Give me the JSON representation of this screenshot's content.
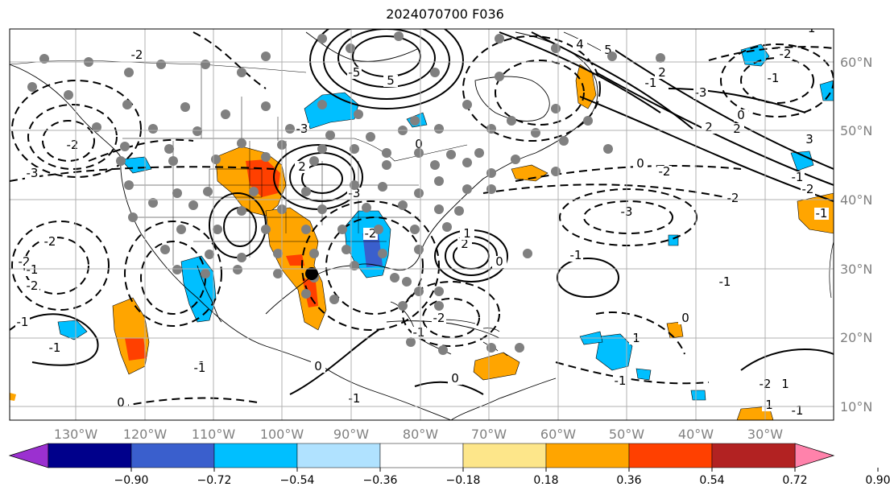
{
  "title": "2024070700 F036",
  "map": {
    "projection": "PlateCarree",
    "lon_range": [
      -139,
      -18
    ],
    "lat_range": [
      7,
      65
    ],
    "gridline_color": "#b0b0b0",
    "lat_labels": [
      "10°N",
      "20°N",
      "30°N",
      "40°N",
      "50°N",
      "60°N"
    ],
    "lon_labels": [
      "130°W",
      "120°W",
      "110°W",
      "100°W",
      "90°W",
      "80°W",
      "70°W",
      "60°W",
      "50°W",
      "40°W",
      "30°W"
    ],
    "contour_labels": [
      "-2",
      "-3",
      "-2",
      "-2",
      "-2",
      "-2",
      "-1",
      "-1",
      "0",
      "-1",
      "-5",
      "5",
      "4",
      "5",
      "-3",
      "-2",
      "0",
      "2",
      "-2",
      "-1",
      "-1",
      "-2",
      "-3",
      "0",
      "2",
      "-2",
      "0",
      "-3",
      "2",
      "-3",
      "-2",
      "-1",
      "-2",
      "2",
      "0",
      "-1",
      "0",
      "-1",
      "1",
      "-1",
      "0",
      "-1",
      "0",
      "-1",
      "-1",
      "-1",
      "1",
      "1",
      "-2",
      "-1",
      "3",
      "-1",
      "2",
      "1",
      "-1"
    ],
    "station_dots_color": "#808080",
    "highlight_dot_color": "#000000"
  },
  "colorbar": {
    "tick_labels": [
      "−0.90",
      "−0.72",
      "−0.54",
      "−0.36",
      "−0.18",
      "0.18",
      "0.36",
      "0.54",
      "0.72",
      "0.90"
    ],
    "colors": [
      "#9b30d0",
      "#00008b",
      "#3a5fcd",
      "#00bfff",
      "#b0e2ff",
      "#ffffff",
      "#fde68a",
      "#ffa500",
      "#ff4000",
      "#b22222",
      "#ff82ab"
    ]
  }
}
